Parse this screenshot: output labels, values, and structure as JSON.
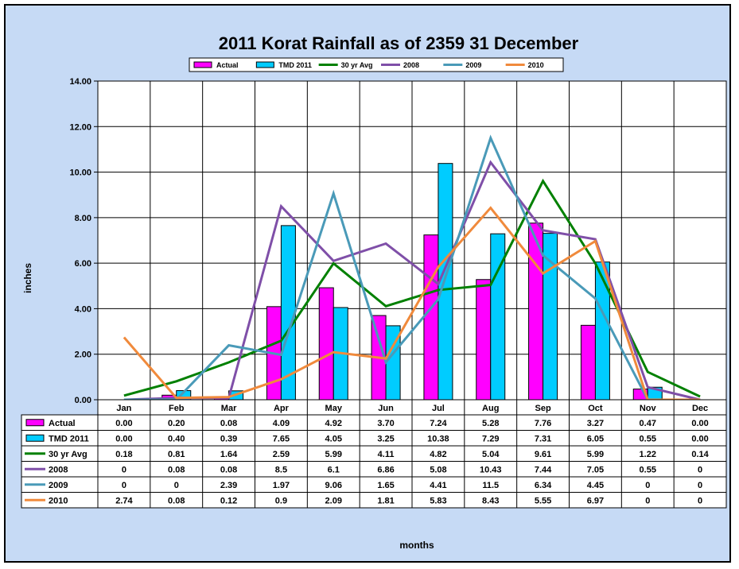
{
  "chart_data": {
    "type": "bar",
    "title": "2011 Korat Rainfall as of 2359 31 December",
    "xlabel": "months",
    "ylabel": "inches",
    "ylim": [
      0,
      14
    ],
    "yticks": [
      "0.00",
      "2.00",
      "4.00",
      "6.00",
      "8.00",
      "10.00",
      "12.00",
      "14.00"
    ],
    "grid": true,
    "legend_position": "top",
    "categories": [
      "Jan",
      "Feb",
      "Mar",
      "Apr",
      "May",
      "Jun",
      "Jul",
      "Aug",
      "Sep",
      "Oct",
      "Nov",
      "Dec"
    ],
    "series": [
      {
        "name": "Actual",
        "kind": "bar",
        "color": "#ff00ff",
        "values": [
          0.0,
          0.2,
          0.08,
          4.09,
          4.92,
          3.7,
          7.24,
          5.28,
          7.76,
          3.27,
          0.47,
          0.0
        ],
        "labels": [
          "0.00",
          "0.20",
          "0.08",
          "4.09",
          "4.92",
          "3.70",
          "7.24",
          "5.28",
          "7.76",
          "3.27",
          "0.47",
          "0.00"
        ]
      },
      {
        "name": "TMD 2011",
        "kind": "bar",
        "color": "#00ccff",
        "values": [
          0.0,
          0.4,
          0.39,
          7.65,
          4.05,
          3.25,
          10.38,
          7.29,
          7.31,
          6.05,
          0.55,
          0.0
        ],
        "labels": [
          "0.00",
          "0.40",
          "0.39",
          "7.65",
          "4.05",
          "3.25",
          "10.38",
          "7.29",
          "7.31",
          "6.05",
          "0.55",
          "0.00"
        ]
      },
      {
        "name": "30 yr Avg",
        "kind": "line",
        "color": "#008000",
        "values": [
          0.18,
          0.81,
          1.64,
          2.59,
          5.99,
          4.11,
          4.82,
          5.04,
          9.61,
          5.99,
          1.22,
          0.14
        ],
        "labels": [
          "0.18",
          "0.81",
          "1.64",
          "2.59",
          "5.99",
          "4.11",
          "4.82",
          "5.04",
          "9.61",
          "5.99",
          "1.22",
          "0.14"
        ]
      },
      {
        "name": "2008",
        "kind": "line",
        "color": "#7f4fa8",
        "values": [
          0,
          0.08,
          0.08,
          8.5,
          6.1,
          6.86,
          5.08,
          10.43,
          7.44,
          7.05,
          0.55,
          0
        ],
        "labels": [
          "0",
          "0.08",
          "0.08",
          "8.5",
          "6.1",
          "6.86",
          "5.08",
          "10.43",
          "7.44",
          "7.05",
          "0.55",
          "0"
        ]
      },
      {
        "name": "2009",
        "kind": "line",
        "color": "#4a9ab8",
        "values": [
          0,
          0,
          2.39,
          1.97,
          9.06,
          1.65,
          4.41,
          11.5,
          6.34,
          4.45,
          0,
          0
        ],
        "labels": [
          "0",
          "0",
          "2.39",
          "1.97",
          "9.06",
          "1.65",
          "4.41",
          "11.5",
          "6.34",
          "4.45",
          "0",
          "0"
        ]
      },
      {
        "name": "2010",
        "kind": "line",
        "color": "#f08a3c",
        "values": [
          2.74,
          0.08,
          0.12,
          0.9,
          2.09,
          1.81,
          5.83,
          8.43,
          5.55,
          6.97,
          0,
          0
        ],
        "labels": [
          "2.74",
          "0.08",
          "0.12",
          "0.9",
          "2.09",
          "1.81",
          "5.83",
          "8.43",
          "5.55",
          "6.97",
          "0",
          "0"
        ]
      }
    ]
  }
}
